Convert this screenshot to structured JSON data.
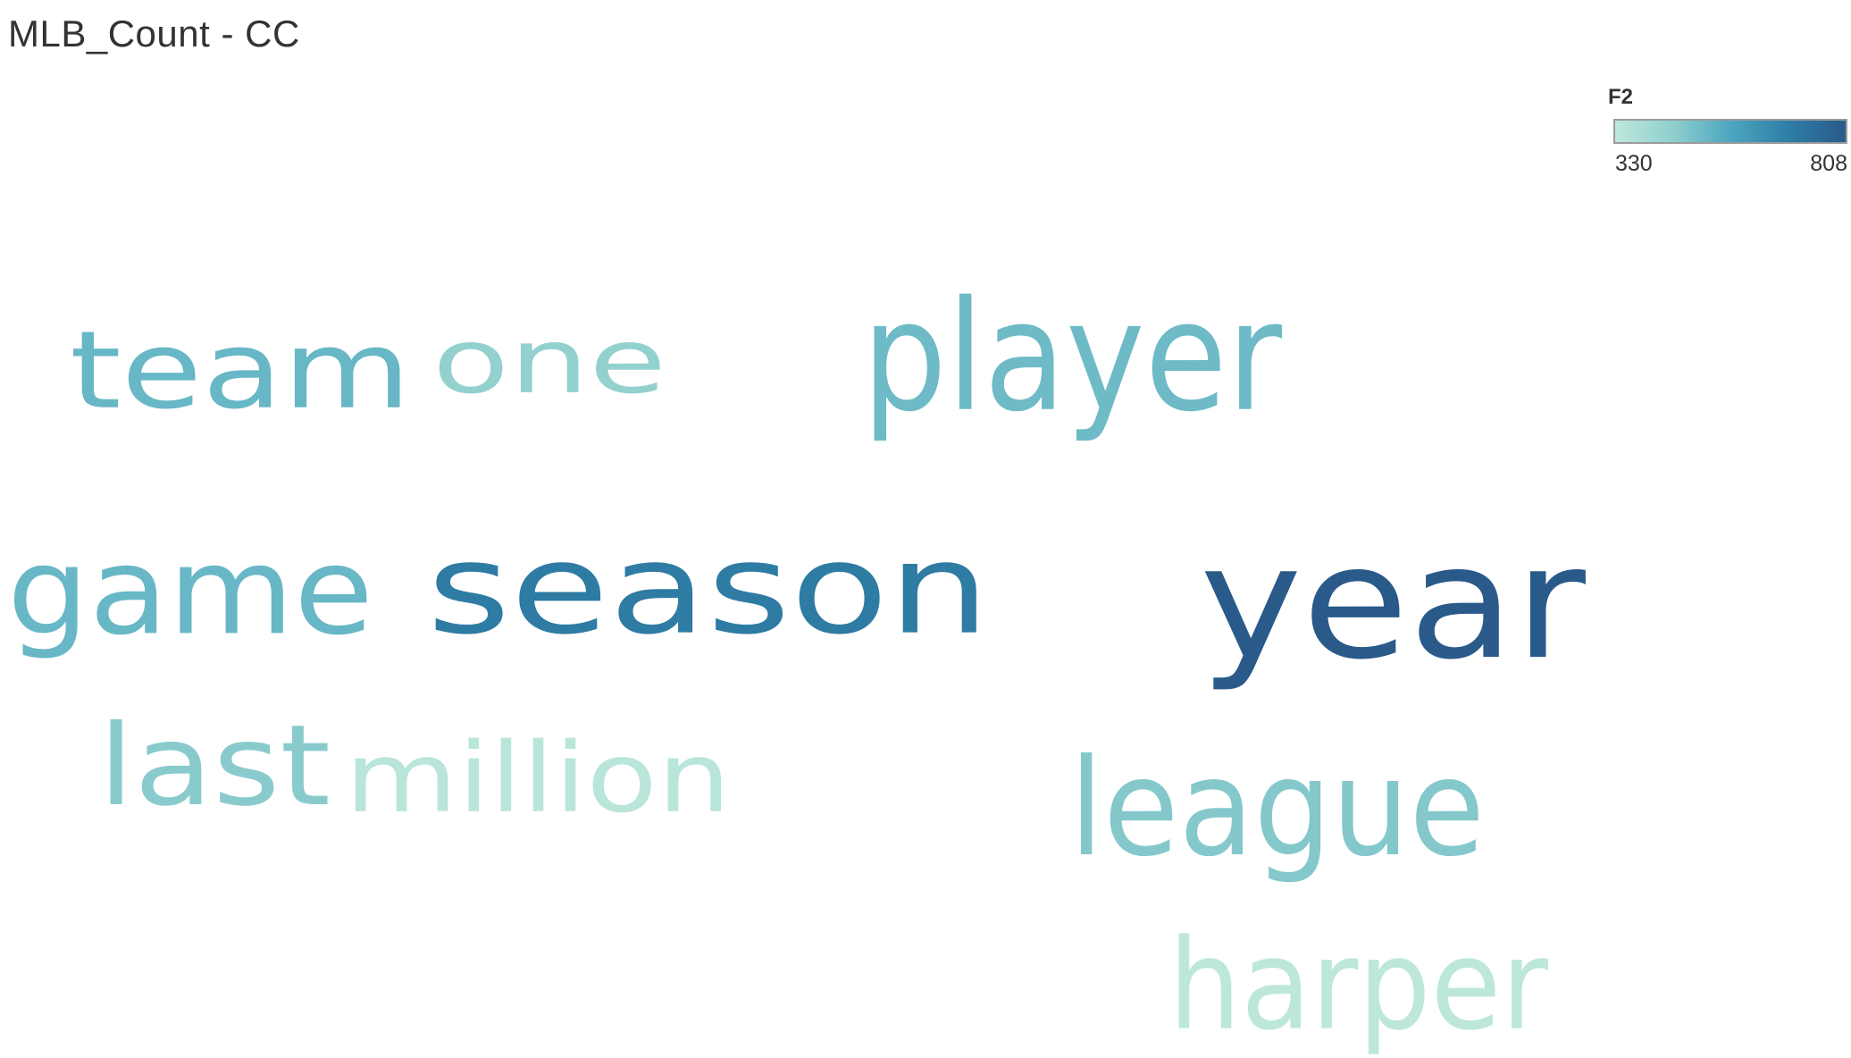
{
  "title": "MLB_Count - CC",
  "legend": {
    "field": "F2",
    "min_label": "330",
    "max_label": "808",
    "colors": [
      "#bfe8dc",
      "#8fcfce",
      "#4da6c0",
      "#2e7ea6",
      "#2a5a8a"
    ]
  },
  "chart_data": {
    "type": "word_cloud",
    "measure": "F2",
    "color_range": [
      330,
      808
    ],
    "words": [
      {
        "text": "year",
        "value": 808
      },
      {
        "text": "season",
        "value": 700
      },
      {
        "text": "game",
        "value": 520
      },
      {
        "text": "team",
        "value": 520
      },
      {
        "text": "player",
        "value": 510
      },
      {
        "text": "league",
        "value": 470
      },
      {
        "text": "last",
        "value": 460
      },
      {
        "text": "one",
        "value": 440
      },
      {
        "text": "million",
        "value": 345
      },
      {
        "text": "harper",
        "value": 335
      }
    ]
  }
}
